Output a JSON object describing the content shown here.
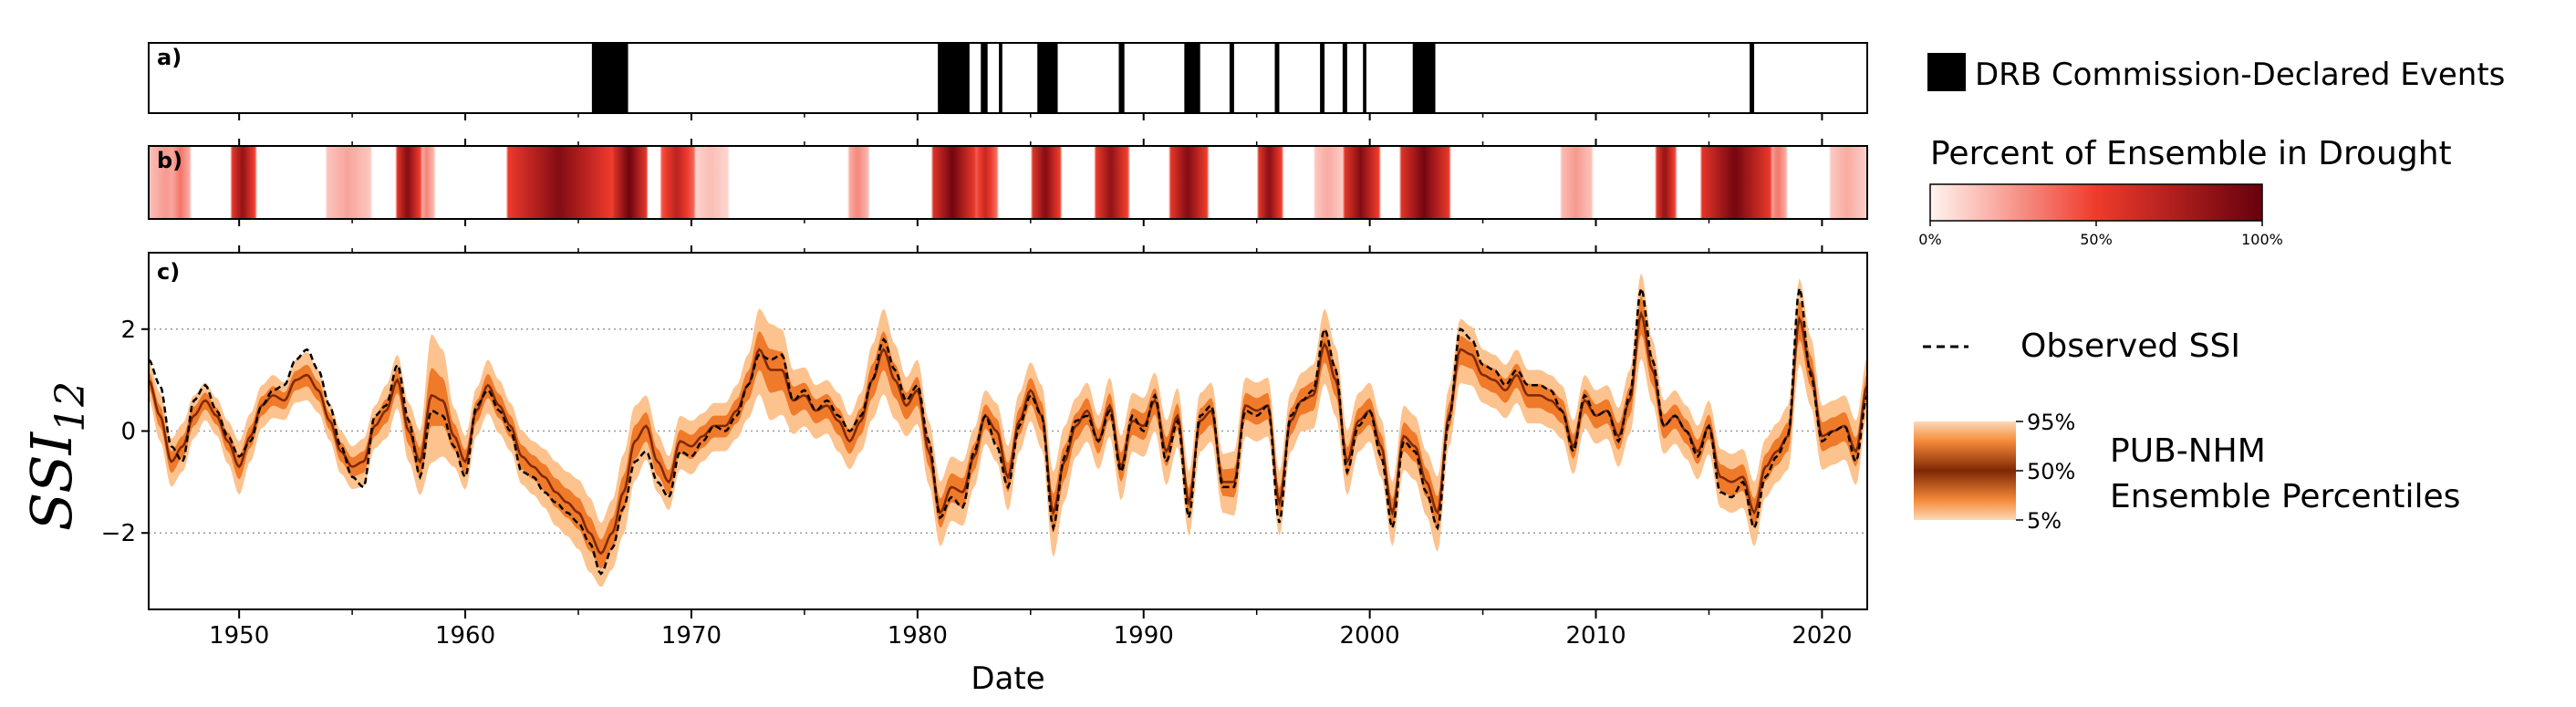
{
  "chart_data": [
    {
      "panel": "a)",
      "type": "event-timeline",
      "legend_label": "DRB Commission-Declared Events",
      "x_range": [
        1946,
        2022
      ],
      "events": [
        [
          1965.6,
          1967.2
        ],
        [
          1980.9,
          1982.3
        ],
        [
          1982.8,
          1983.1
        ],
        [
          1983.6,
          1983.75
        ],
        [
          1985.3,
          1986.2
        ],
        [
          1988.9,
          1989.15
        ],
        [
          1991.8,
          1992.5
        ],
        [
          1993.8,
          1994.0
        ],
        [
          1995.8,
          1996.0
        ],
        [
          1997.8,
          1998.0
        ],
        [
          1998.8,
          1999.0
        ],
        [
          1999.7,
          1999.85
        ],
        [
          2001.9,
          2002.9
        ],
        [
          2016.8,
          2017.0
        ]
      ]
    },
    {
      "panel": "b)",
      "type": "heatmap",
      "legend_title": "Percent of Ensemble in Drought",
      "colorbar_ticks": [
        "0%",
        "50%",
        "100%"
      ],
      "color_low": "#fff5f0",
      "color_mid": "#ef3b2c",
      "color_high": "#67000d",
      "x_range": [
        1946,
        2022
      ],
      "segments": [
        [
          1946.0,
          1947.5,
          0.25
        ],
        [
          1947.0,
          1947.8,
          0.35
        ],
        [
          1949.6,
          1950.7,
          0.85
        ],
        [
          1953.8,
          1955.8,
          0.22
        ],
        [
          1956.9,
          1958.0,
          0.9
        ],
        [
          1958.0,
          1958.6,
          0.3
        ],
        [
          1961.8,
          1966.5,
          0.9
        ],
        [
          1966.5,
          1968.0,
          0.98
        ],
        [
          1968.6,
          1970.1,
          0.7
        ],
        [
          1970.1,
          1971.6,
          0.15
        ],
        [
          1976.9,
          1977.8,
          0.3
        ],
        [
          1980.6,
          1982.5,
          0.96
        ],
        [
          1982.5,
          1983.5,
          0.65
        ],
        [
          1985.0,
          1986.3,
          0.9
        ],
        [
          1987.8,
          1989.3,
          0.85
        ],
        [
          1991.1,
          1992.8,
          0.9
        ],
        [
          1995.0,
          1996.1,
          0.88
        ],
        [
          1997.5,
          1998.8,
          0.2
        ],
        [
          1998.8,
          2000.4,
          0.9
        ],
        [
          2001.3,
          2003.5,
          0.95
        ],
        [
          2008.4,
          2009.8,
          0.25
        ],
        [
          2012.6,
          2013.5,
          0.85
        ],
        [
          2014.6,
          2017.7,
          0.95
        ],
        [
          2017.7,
          2018.4,
          0.35
        ],
        [
          2020.3,
          2021.9,
          0.2
        ]
      ]
    },
    {
      "panel": "c)",
      "type": "area",
      "ylabel": "SSI12",
      "xlabel": "Date",
      "x_ticks": [
        "1950",
        "1960",
        "1970",
        "1980",
        "1990",
        "2000",
        "2010",
        "2020"
      ],
      "y_ticks": [
        "−2",
        "0",
        "2"
      ],
      "xlim": [
        1946,
        2022
      ],
      "ylim": [
        -3.5,
        3.5
      ],
      "grid": "horizontal dotted",
      "series": [
        {
          "name": "Observed SSI",
          "style": "black dashed"
        },
        {
          "name": "PUB-NHM Ensemble Percentiles",
          "band_labels": [
            "95%",
            "50%",
            "5%"
          ]
        }
      ],
      "legend_labels": {
        "observed": "Observed SSI",
        "ensemble_line1": "PUB-NHM",
        "ensemble_line2": "Ensemble Percentiles"
      },
      "ensemble_colors": {
        "outer": "#fdc38f",
        "mid": "#ef7a2a",
        "median": "#7f2704"
      },
      "x": [
        1946.0,
        1946.5,
        1947.0,
        1947.5,
        1948.0,
        1948.5,
        1949.0,
        1949.5,
        1950.0,
        1950.5,
        1951.0,
        1951.5,
        1952.0,
        1952.5,
        1953.0,
        1953.5,
        1954.0,
        1954.5,
        1955.0,
        1955.5,
        1956.0,
        1956.5,
        1957.0,
        1957.5,
        1958.0,
        1958.5,
        1959.0,
        1959.5,
        1960.0,
        1960.5,
        1961.0,
        1961.5,
        1962.0,
        1962.5,
        1963.0,
        1963.5,
        1964.0,
        1964.5,
        1965.0,
        1965.5,
        1966.0,
        1966.5,
        1967.0,
        1967.5,
        1968.0,
        1968.5,
        1969.0,
        1969.5,
        1970.0,
        1970.5,
        1971.0,
        1971.5,
        1972.0,
        1972.5,
        1973.0,
        1973.5,
        1974.0,
        1974.5,
        1975.0,
        1975.5,
        1976.0,
        1976.5,
        1977.0,
        1977.5,
        1978.0,
        1978.5,
        1979.0,
        1979.5,
        1980.0,
        1980.5,
        1981.0,
        1981.5,
        1982.0,
        1982.5,
        1983.0,
        1983.5,
        1984.0,
        1984.5,
        1985.0,
        1985.5,
        1986.0,
        1986.5,
        1987.0,
        1987.5,
        1988.0,
        1988.5,
        1989.0,
        1989.5,
        1990.0,
        1990.5,
        1991.0,
        1991.5,
        1992.0,
        1992.5,
        1993.0,
        1993.5,
        1994.0,
        1994.5,
        1995.0,
        1995.5,
        1996.0,
        1996.5,
        1997.0,
        1997.5,
        1998.0,
        1998.5,
        1999.0,
        1999.5,
        2000.0,
        2000.5,
        2001.0,
        2001.5,
        2002.0,
        2002.5,
        2003.0,
        2003.5,
        2004.0,
        2004.5,
        2005.0,
        2005.5,
        2006.0,
        2006.5,
        2007.0,
        2007.5,
        2008.0,
        2008.5,
        2009.0,
        2009.5,
        2010.0,
        2010.5,
        2011.0,
        2011.5,
        2012.0,
        2012.5,
        2013.0,
        2013.5,
        2014.0,
        2014.5,
        2015.0,
        2015.5,
        2016.0,
        2016.5,
        2017.0,
        2017.5,
        2018.0,
        2018.5,
        2019.0,
        2019.5,
        2020.0,
        2020.5,
        2021.0,
        2021.5,
        2022.0
      ],
      "observed": [
        1.4,
        0.9,
        -0.3,
        -0.6,
        0.6,
        0.9,
        0.4,
        -0.1,
        -0.5,
        -0.2,
        0.5,
        0.8,
        0.9,
        1.4,
        1.6,
        1.2,
        0.5,
        -0.3,
        -0.9,
        -1.1,
        0.3,
        0.5,
        1.3,
        0.2,
        -0.9,
        0.4,
        0.3,
        -0.3,
        -0.9,
        0.5,
        0.8,
        0.4,
        0.0,
        -0.8,
        -0.9,
        -1.2,
        -1.4,
        -1.6,
        -1.8,
        -2.2,
        -2.8,
        -2.3,
        -1.5,
        -0.6,
        -0.4,
        -1.0,
        -1.3,
        -0.4,
        -0.5,
        -0.2,
        0.1,
        0.0,
        0.3,
        0.9,
        1.5,
        1.4,
        1.5,
        0.6,
        0.8,
        0.4,
        0.6,
        0.3,
        0.0,
        0.3,
        1.0,
        1.8,
        1.2,
        0.6,
        0.9,
        -0.2,
        -1.7,
        -1.3,
        -1.5,
        -0.4,
        0.3,
        -0.3,
        -1.1,
        0.1,
        0.7,
        0.3,
        -1.9,
        -0.5,
        0.2,
        0.3,
        -0.2,
        0.4,
        -0.8,
        0.3,
        0.0,
        0.7,
        -0.6,
        0.2,
        -1.7,
        0.3,
        0.5,
        -1.1,
        -1.1,
        0.4,
        0.3,
        0.5,
        -1.8,
        0.3,
        0.6,
        0.8,
        2.0,
        1.2,
        -0.8,
        0.1,
        0.4,
        -0.5,
        -1.9,
        -0.2,
        -0.4,
        -1.2,
        -1.9,
        0.2,
        2.0,
        1.8,
        1.3,
        1.2,
        0.9,
        1.2,
        0.9,
        0.9,
        0.8,
        0.4,
        -0.4,
        0.7,
        0.3,
        0.4,
        -0.2,
        0.7,
        2.8,
        1.4,
        0.1,
        0.3,
        0.0,
        -0.5,
        0.1,
        -1.2,
        -1.3,
        -1.0,
        -1.9,
        -0.9,
        -0.5,
        -0.1,
        2.8,
        1.1,
        -0.2,
        0.0,
        0.1,
        -0.6,
        0.7
      ],
      "median": [
        1.0,
        0.3,
        -0.6,
        -0.3,
        0.3,
        0.6,
        0.3,
        -0.2,
        -0.7,
        -0.1,
        0.5,
        0.7,
        0.6,
        1.0,
        1.1,
        0.8,
        0.2,
        -0.4,
        -0.7,
        -0.6,
        0.1,
        0.4,
        1.0,
        0.0,
        -0.6,
        0.7,
        0.6,
        -0.1,
        -0.6,
        0.4,
        0.9,
        0.5,
        0.1,
        -0.5,
        -0.7,
        -0.9,
        -1.2,
        -1.4,
        -1.6,
        -2.0,
        -2.4,
        -2.0,
        -1.2,
        -0.2,
        0.1,
        -0.6,
        -1.0,
        -0.2,
        -0.3,
        -0.1,
        0.1,
        0.1,
        0.4,
        0.9,
        1.6,
        1.2,
        1.2,
        0.6,
        0.7,
        0.4,
        0.5,
        0.2,
        -0.2,
        0.2,
        1.0,
        1.6,
        1.0,
        0.5,
        0.8,
        -0.4,
        -1.6,
        -1.1,
        -1.2,
        -0.5,
        0.3,
        0.0,
        -0.9,
        0.2,
        0.8,
        0.3,
        -1.6,
        -0.6,
        0.1,
        0.4,
        -0.2,
        0.5,
        -0.7,
        0.2,
        0.1,
        0.6,
        -0.4,
        0.3,
        -1.4,
        0.2,
        0.4,
        -1.0,
        -1.0,
        0.5,
        0.4,
        0.5,
        -1.4,
        0.2,
        0.6,
        0.7,
        1.7,
        1.0,
        -0.6,
        0.2,
        0.4,
        -0.3,
        -1.6,
        -0.1,
        -0.3,
        -1.0,
        -1.6,
        0.3,
        1.6,
        1.5,
        1.1,
        1.0,
        0.8,
        1.1,
        0.7,
        0.7,
        0.6,
        0.4,
        -0.3,
        0.6,
        0.3,
        0.4,
        -0.1,
        0.6,
        2.3,
        1.2,
        0.1,
        0.3,
        0.0,
        -0.4,
        0.1,
        -0.9,
        -1.0,
        -0.9,
        -1.6,
        -0.7,
        -0.4,
        -0.1,
        2.2,
        1.2,
        -0.1,
        0.0,
        0.1,
        -0.4,
        0.9
      ],
      "spread": [
        0.35,
        0.45,
        0.45,
        0.45,
        0.4,
        0.35,
        0.35,
        0.4,
        0.5,
        0.45,
        0.4,
        0.4,
        0.35,
        0.4,
        0.45,
        0.4,
        0.35,
        0.4,
        0.4,
        0.45,
        0.4,
        0.5,
        0.5,
        0.55,
        0.6,
        1.2,
        1.0,
        0.55,
        0.5,
        0.45,
        0.5,
        0.5,
        0.45,
        0.5,
        0.5,
        0.55,
        0.6,
        0.6,
        0.65,
        0.7,
        0.6,
        0.65,
        0.75,
        0.7,
        0.6,
        0.55,
        0.5,
        0.5,
        0.5,
        0.45,
        0.45,
        0.45,
        0.5,
        0.6,
        0.8,
        0.9,
        0.8,
        0.6,
        0.55,
        0.5,
        0.5,
        0.55,
        0.5,
        0.55,
        0.7,
        0.8,
        0.7,
        0.55,
        0.6,
        0.6,
        0.6,
        0.6,
        0.6,
        0.55,
        0.5,
        0.55,
        0.6,
        0.55,
        0.55,
        0.6,
        0.8,
        0.7,
        0.55,
        0.55,
        0.5,
        0.55,
        0.6,
        0.55,
        0.55,
        0.55,
        0.6,
        0.55,
        0.6,
        0.55,
        0.55,
        0.55,
        0.6,
        0.55,
        0.55,
        0.55,
        0.6,
        0.55,
        0.55,
        0.6,
        0.7,
        0.65,
        0.6,
        0.55,
        0.55,
        0.55,
        0.6,
        0.6,
        0.6,
        0.6,
        0.7,
        0.55,
        0.6,
        0.55,
        0.5,
        0.5,
        0.5,
        0.5,
        0.5,
        0.5,
        0.5,
        0.5,
        0.5,
        0.5,
        0.5,
        0.5,
        0.55,
        0.6,
        0.8,
        0.6,
        0.5,
        0.5,
        0.5,
        0.5,
        0.5,
        0.55,
        0.55,
        0.55,
        0.6,
        0.55,
        0.55,
        0.6,
        0.8,
        0.65,
        0.6,
        0.6,
        0.6,
        0.6,
        0.55
      ]
    }
  ]
}
